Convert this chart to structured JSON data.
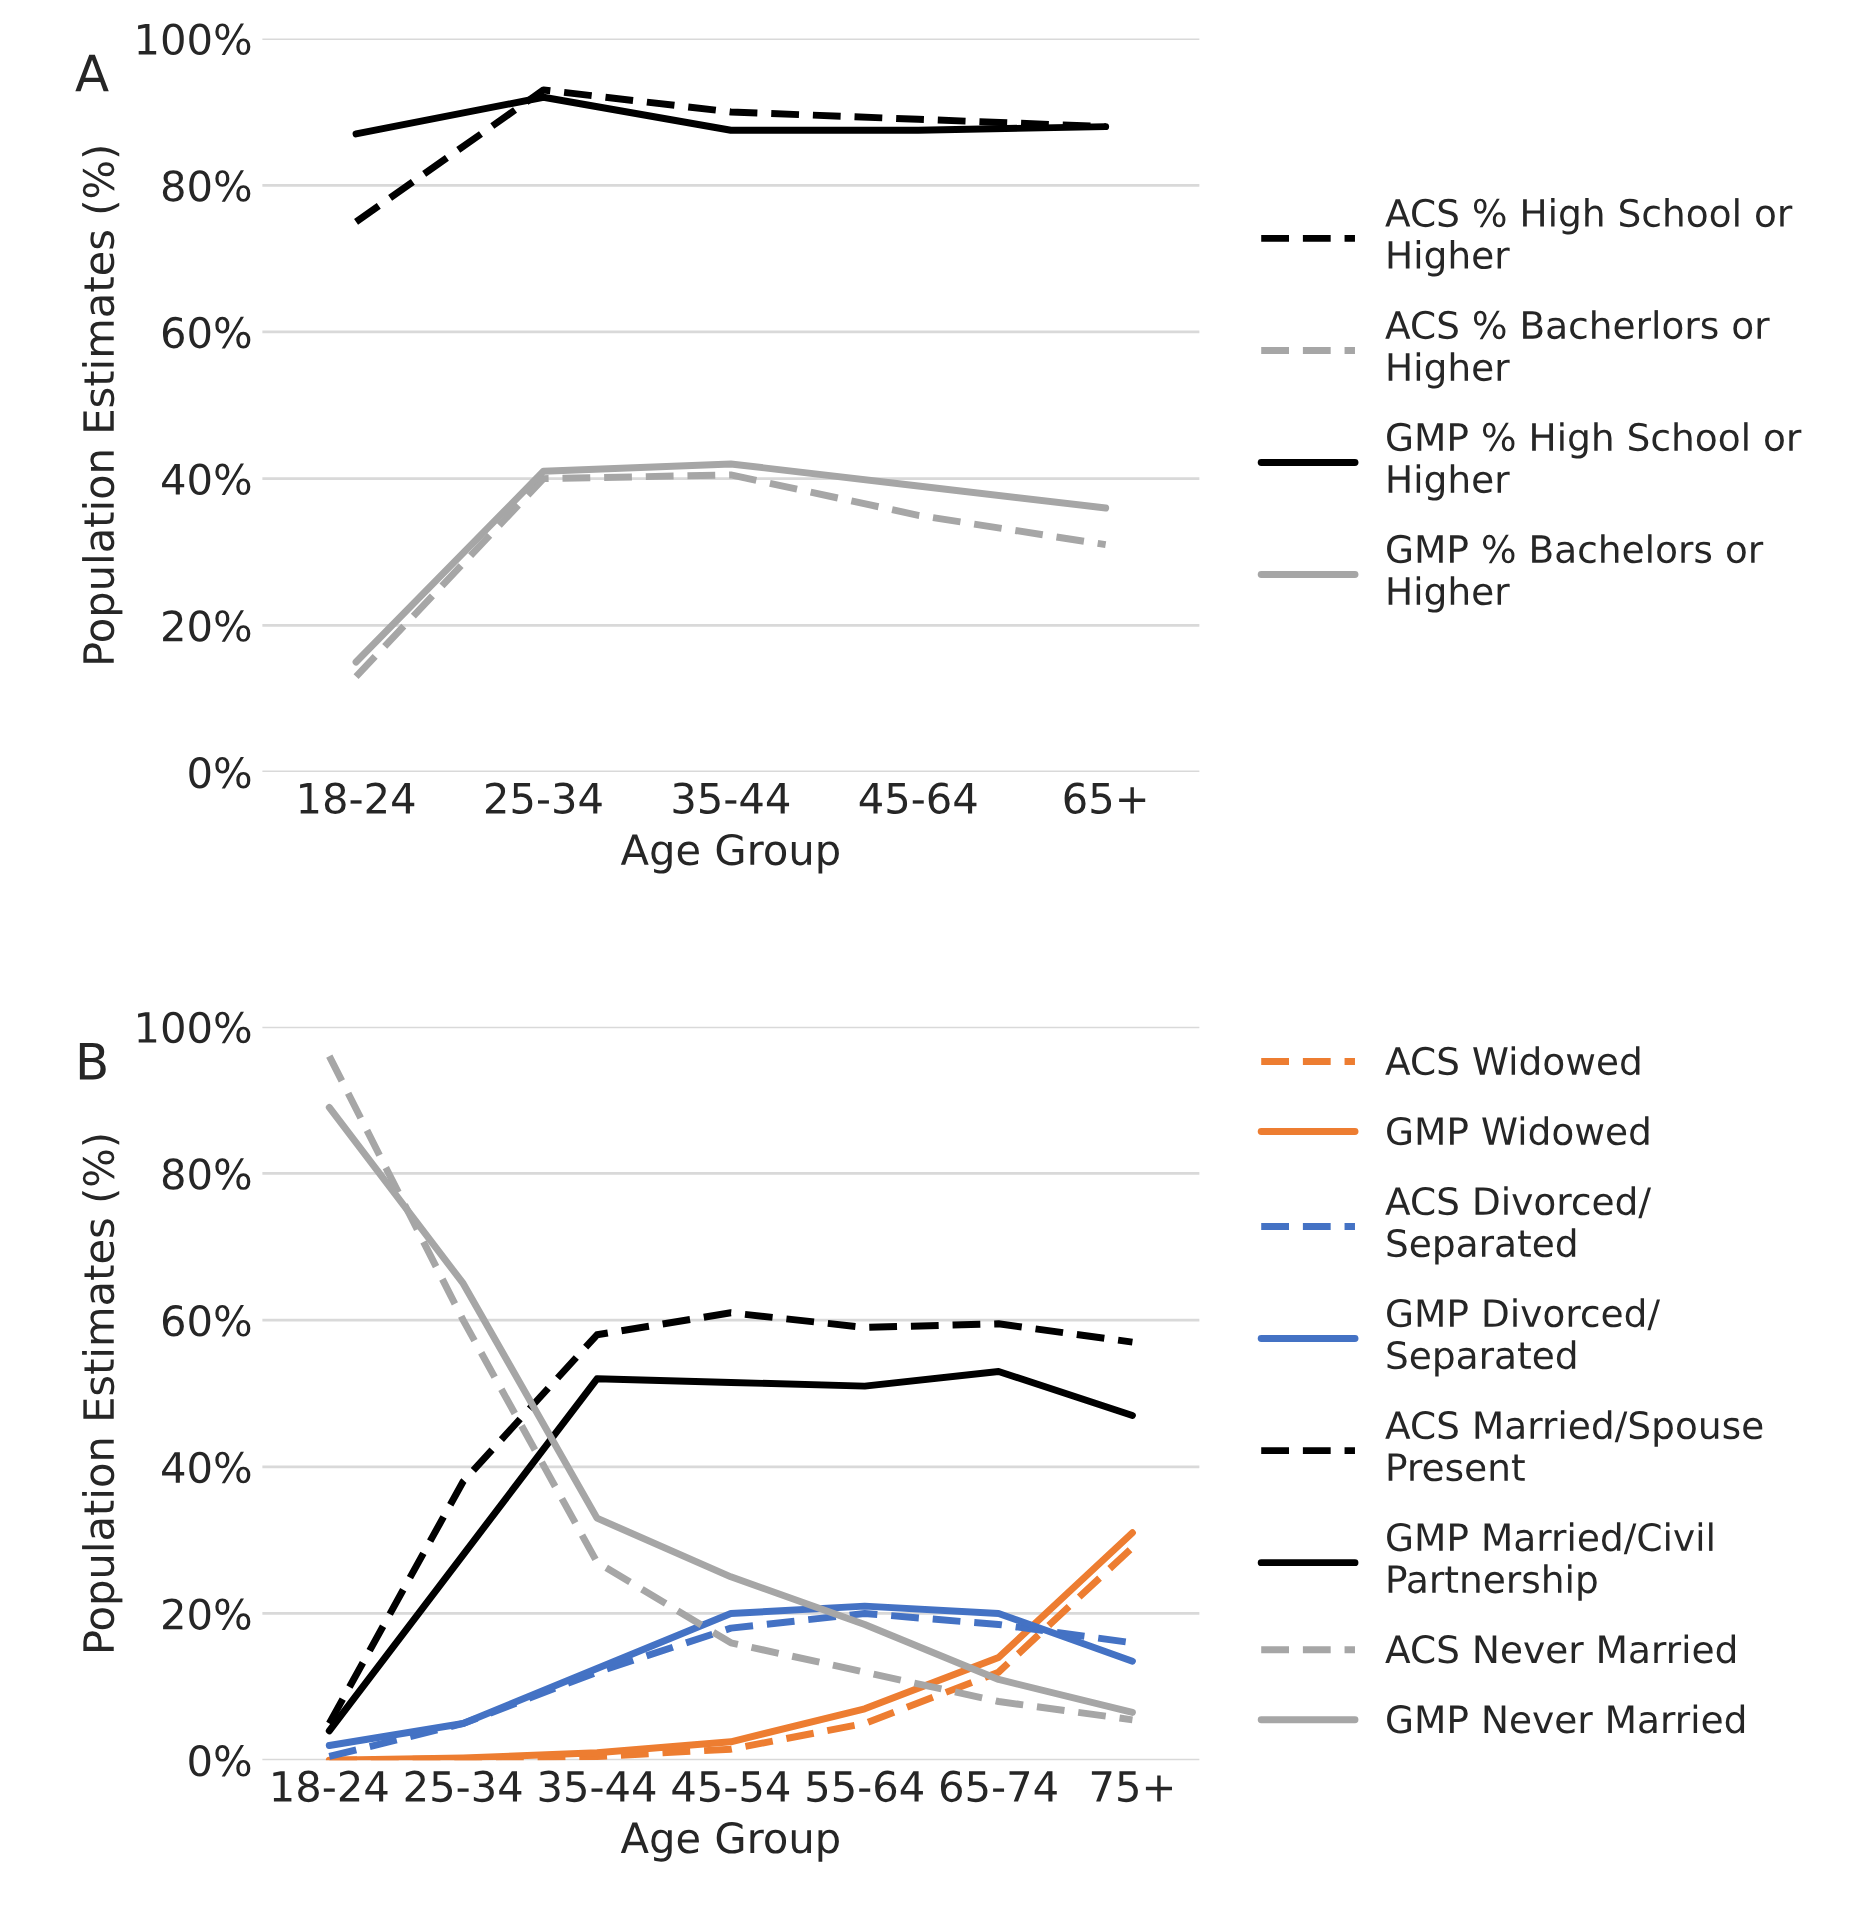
{
  "chart_data": [
    {
      "type": "line",
      "xlabel": "Age Group",
      "ylabel": "Population Estimates (%)",
      "annotations": [
        "A"
      ],
      "categories": [
        "18-24",
        "25-34",
        "35-44",
        "45-64",
        "65+"
      ],
      "ylim": [
        0,
        100
      ],
      "yticks": [
        {
          "value": 0,
          "label": "0%"
        },
        {
          "value": 20,
          "label": "20%"
        },
        {
          "value": 40,
          "label": "40%"
        },
        {
          "value": 60,
          "label": "60%"
        },
        {
          "value": 80,
          "label": "80%"
        },
        {
          "value": 100,
          "label": "100%"
        }
      ],
      "grid": "y",
      "legend": "right",
      "series": [
        {
          "name": "ACS % High School or\nHigher",
          "color": "#000000",
          "line_style": "dashed",
          "values": [
            75,
            93,
            90,
            89,
            88
          ]
        },
        {
          "name": "ACS % Bacherlors or\nHigher",
          "color": "#a6a6a6",
          "line_style": "dashed",
          "values": [
            13,
            40,
            40.5,
            35,
            31
          ]
        },
        {
          "name": "GMP % High School or\nHigher",
          "color": "#000000",
          "line_style": "solid",
          "values": [
            87,
            92,
            87.5,
            87.5,
            88
          ]
        },
        {
          "name": "GMP % Bachelors or\nHigher",
          "color": "#a6a6a6",
          "line_style": "solid",
          "values": [
            15,
            41,
            42,
            39,
            36
          ]
        }
      ]
    },
    {
      "type": "line",
      "xlabel": "Age Group",
      "ylabel": "Population Estimates (%)",
      "annotations": [
        "B"
      ],
      "categories": [
        "18-24",
        "25-34",
        "35-44",
        "45-54",
        "55-64",
        "65-74",
        "75+"
      ],
      "ylim": [
        0,
        100
      ],
      "yticks": [
        {
          "value": 0,
          "label": "0%"
        },
        {
          "value": 20,
          "label": "20%"
        },
        {
          "value": 40,
          "label": "40%"
        },
        {
          "value": 60,
          "label": "60%"
        },
        {
          "value": 80,
          "label": "80%"
        },
        {
          "value": 100,
          "label": "100%"
        }
      ],
      "grid": "y",
      "legend": "right",
      "series": [
        {
          "name": "ACS Widowed",
          "color": "#ed7d31",
          "line_style": "dashed",
          "values": [
            0,
            0.2,
            0.5,
            1.5,
            5,
            12,
            29
          ]
        },
        {
          "name": "GMP Widowed",
          "color": "#ed7d31",
          "line_style": "solid",
          "values": [
            0,
            0.3,
            1,
            2.5,
            7,
            14,
            31
          ]
        },
        {
          "name": "ACS Divorced/\nSeparated",
          "color": "#4472c4",
          "line_style": "dashed",
          "values": [
            0.5,
            5,
            12,
            18,
            20,
            18.5,
            16
          ]
        },
        {
          "name": "GMP Divorced/\nSeparated",
          "color": "#4472c4",
          "line_style": "solid",
          "values": [
            2,
            5,
            12.5,
            20,
            21,
            20,
            13.5
          ]
        },
        {
          "name": "ACS Married/Spouse\nPresent",
          "color": "#000000",
          "line_style": "dashed",
          "values": [
            5,
            38,
            58,
            61,
            59,
            59.5,
            57
          ]
        },
        {
          "name": "GMP Married/Civil\nPartnership",
          "color": "#000000",
          "line_style": "solid",
          "values": [
            4,
            28,
            52,
            51.5,
            51,
            53,
            47
          ]
        },
        {
          "name": "ACS Never Married",
          "color": "#a6a6a6",
          "line_style": "dashed",
          "values": [
            96,
            60,
            27,
            16,
            12,
            8,
            5.5
          ]
        },
        {
          "name": "GMP Never Married",
          "color": "#a6a6a6",
          "line_style": "solid",
          "values": [
            89,
            65,
            33,
            25,
            18.5,
            11,
            6.5
          ]
        }
      ]
    }
  ]
}
